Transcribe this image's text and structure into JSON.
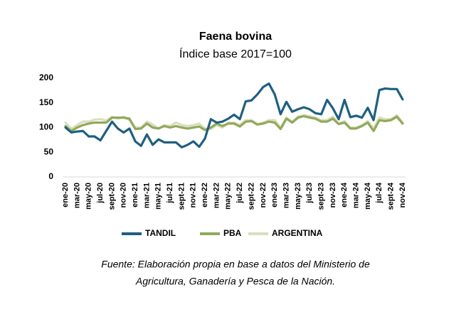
{
  "chart_data": {
    "type": "line",
    "title": "Faena bovina",
    "subtitle": "Índice base 2017=100",
    "categories": [
      "ene-20",
      null,
      "mar-20",
      null,
      "may-20",
      null,
      "jul-20",
      null,
      "sept-20",
      null,
      "nov-20",
      null,
      "ene-21",
      null,
      "mar-21",
      null,
      "may-21",
      null,
      "jul-21",
      null,
      "sept-21",
      null,
      "nov-21",
      null,
      "ene-22",
      null,
      "mar-22",
      null,
      "may-22",
      null,
      "jul-22",
      null,
      "sept-22",
      null,
      "nov-22",
      null,
      "ene-23",
      null,
      "mar-23",
      null,
      "may-23",
      null,
      "jul-23",
      null,
      "sept-23",
      null,
      "nov-23",
      null,
      "ene-24",
      null,
      "mar-24",
      null,
      "may-24",
      null,
      "jul-24",
      null,
      "sept-24",
      null,
      "nov-24"
    ],
    "series": [
      {
        "name": "TANDIL",
        "color": "#1f5f80",
        "values": [
          100,
          90,
          92,
          93,
          82,
          82,
          74,
          93,
          112,
          98,
          90,
          98,
          72,
          63,
          86,
          65,
          76,
          70,
          70,
          70,
          60,
          65,
          72,
          61,
          78,
          117,
          110,
          112,
          118,
          126,
          117,
          153,
          155,
          167,
          182,
          189,
          167,
          127,
          152,
          132,
          137,
          141,
          137,
          129,
          127,
          156,
          139,
          117,
          156,
          121,
          124,
          120,
          140,
          115,
          176,
          179,
          178,
          178,
          157
        ]
      },
      {
        "name": "PBA",
        "color": "#8faa5a",
        "values": [
          103,
          93,
          100,
          105,
          108,
          110,
          110,
          110,
          120,
          120,
          120,
          118,
          97,
          98,
          108,
          100,
          98,
          103,
          100,
          103,
          100,
          98,
          100,
          102,
          95,
          100,
          108,
          103,
          108,
          108,
          102,
          112,
          113,
          106,
          108,
          112,
          110,
          97,
          118,
          110,
          120,
          123,
          120,
          118,
          112,
          112,
          118,
          107,
          110,
          98,
          98,
          103,
          110,
          93,
          115,
          113,
          115,
          122,
          108
        ]
      },
      {
        "name": "ARGENTINA",
        "color": "#dcdcc0",
        "values": [
          110,
          97,
          105,
          112,
          112,
          116,
          117,
          114,
          122,
          118,
          122,
          115,
          100,
          100,
          112,
          106,
          98,
          105,
          103,
          110,
          105,
          103,
          105,
          108,
          98,
          97,
          105,
          100,
          110,
          110,
          105,
          115,
          115,
          107,
          110,
          115,
          115,
          100,
          120,
          112,
          122,
          125,
          123,
          120,
          115,
          115,
          122,
          108,
          113,
          100,
          100,
          105,
          113,
          98,
          120,
          117,
          117,
          125,
          110
        ]
      }
    ],
    "ylim": [
      0,
      200
    ],
    "yticks": [
      0,
      50,
      100,
      150,
      200
    ],
    "grid": false,
    "legend": "bottom",
    "source": [
      "Fuente: Elaboración propia en base a datos del Ministerio de",
      "Agricultura, Ganadería y Pesca de la Nación."
    ]
  }
}
